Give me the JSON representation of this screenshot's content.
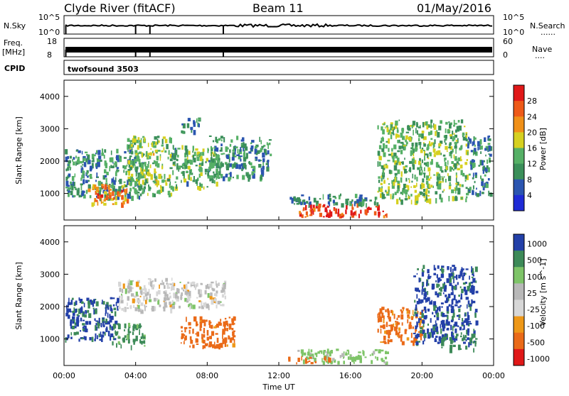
{
  "header": {
    "station": "Clyde River (fitACF)",
    "beam": "Beam 11",
    "date": "01/May/2016"
  },
  "strip": {
    "nsky_label": "N.Sky",
    "nsearch_label": "N.Search",
    "nsky_ticks": [
      "10^5",
      "10^0"
    ],
    "nsearch_ticks": [
      "10^5",
      "10^0"
    ],
    "freq_label_1": "Freq.",
    "freq_label_2": "[MHz]",
    "freq_ticks": [
      "18",
      "8"
    ],
    "nave_label": "Nave",
    "nave_ticks": [
      "60",
      "0"
    ],
    "cpid_label": "CPID",
    "cpid_value": "twofsound 3503",
    "dotted_marker": "......",
    "dotted_marker_short": "...."
  },
  "colors": {
    "power": [
      "#1f2bd6",
      "#2b55b0",
      "#3b8f5a",
      "#56b066",
      "#d6d020",
      "#f09018",
      "#ee5a18",
      "#e01818"
    ],
    "velocity": [
      "#2340a8",
      "#3d8a58",
      "#7ec468",
      "#b8b8b8",
      "#d7d7d7",
      "#ee9818",
      "#ea6a18",
      "#e01818"
    ]
  },
  "chart_data": [
    {
      "type": "heatmap",
      "name": "power",
      "xlabel": "",
      "ylabel": "Slant Range [km]",
      "xlim": [
        "00:00",
        "24:00"
      ],
      "ylim": [
        180,
        4500
      ],
      "y_ticks": [
        1000,
        2000,
        3000,
        4000
      ],
      "colorbar_label": "Power [dB]",
      "colorbar_ticks": [
        "4",
        "8",
        "12",
        "16",
        "20",
        "24",
        "28"
      ],
      "colorbar_range": [
        0,
        30
      ],
      "regions": [
        {
          "t": [
            0.0,
            4.5
          ],
          "r": [
            900,
            2400
          ],
          "level": 10
        },
        {
          "t": [
            1.2,
            3.5
          ],
          "r": [
            700,
            1300
          ],
          "level": 22
        },
        {
          "t": [
            3.5,
            6.0
          ],
          "r": [
            1000,
            2800
          ],
          "level": 14
        },
        {
          "t": [
            6.0,
            8.5
          ],
          "r": [
            1200,
            2500
          ],
          "level": 12
        },
        {
          "t": [
            6.5,
            7.5
          ],
          "r": [
            2900,
            3400
          ],
          "level": 9
        },
        {
          "t": [
            8.0,
            11.5
          ],
          "r": [
            1500,
            2800
          ],
          "level": 10
        },
        {
          "t": [
            13.0,
            18.0
          ],
          "r": [
            200,
            700
          ],
          "level": 27
        },
        {
          "t": [
            12.5,
            17.5
          ],
          "r": [
            700,
            1000
          ],
          "level": 9
        },
        {
          "t": [
            17.5,
            22.5
          ],
          "r": [
            800,
            3300
          ],
          "level": 13
        },
        {
          "t": [
            22.5,
            24.0
          ],
          "r": [
            1000,
            2800
          ],
          "level": 9
        }
      ]
    },
    {
      "type": "heatmap",
      "name": "velocity",
      "xlabel": "Time UT",
      "ylabel": "Slant Range [km]",
      "xlim": [
        "00:00",
        "24:00"
      ],
      "ylim": [
        180,
        4500
      ],
      "x_ticks": [
        "00:00",
        "04:00",
        "08:00",
        "12:00",
        "16:00",
        "20:00",
        "00:00"
      ],
      "y_ticks": [
        1000,
        2000,
        3000,
        4000
      ],
      "colorbar_label": "Velocity [m s^-1]",
      "colorbar_ticks": [
        "1000",
        "500",
        "100",
        "25",
        "-25",
        "-100",
        "-500",
        "-1000"
      ],
      "colorbar_range": [
        -1000,
        1000
      ],
      "regions": [
        {
          "t": [
            0.0,
            3.0
          ],
          "r": [
            1000,
            2300
          ],
          "v": 600
        },
        {
          "t": [
            2.5,
            4.5
          ],
          "r": [
            800,
            1500
          ],
          "v": 150
        },
        {
          "t": [
            3.0,
            6.0
          ],
          "r": [
            1900,
            2900
          ],
          "v": 0
        },
        {
          "t": [
            6.0,
            9.0
          ],
          "r": [
            2000,
            2800
          ],
          "v": 0
        },
        {
          "t": [
            6.5,
            9.5
          ],
          "r": [
            800,
            1700
          ],
          "v": -150
        },
        {
          "t": [
            13.0,
            18.0
          ],
          "r": [
            200,
            700
          ],
          "v": 50
        },
        {
          "t": [
            12.5,
            15.0
          ],
          "r": [
            200,
            500
          ],
          "v": -200
        },
        {
          "t": [
            17.5,
            20.0
          ],
          "r": [
            900,
            2000
          ],
          "v": -120
        },
        {
          "t": [
            19.5,
            23.0
          ],
          "r": [
            900,
            3300
          ],
          "v": 600
        },
        {
          "t": [
            21.0,
            23.0
          ],
          "r": [
            700,
            1200
          ],
          "v": 200
        }
      ]
    }
  ]
}
